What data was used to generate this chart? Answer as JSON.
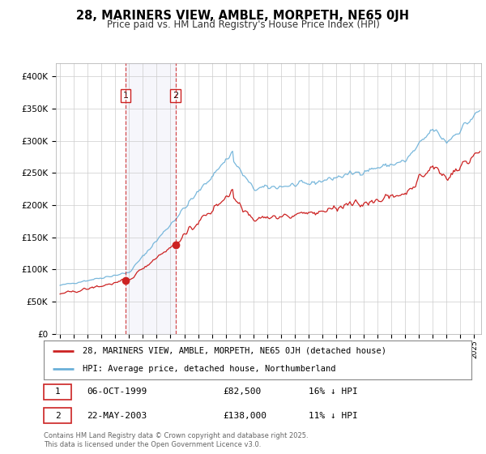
{
  "title": "28, MARINERS VIEW, AMBLE, MORPETH, NE65 0JH",
  "subtitle": "Price paid vs. HM Land Registry's House Price Index (HPI)",
  "hpi_color": "#6ab0d8",
  "property_color": "#cc2222",
  "sale1_date": "06-OCT-1999",
  "sale1_price": 82500,
  "sale1_year": 1999.75,
  "sale1_hpi_pct": "16% ↓ HPI",
  "sale2_date": "22-MAY-2003",
  "sale2_price": 138000,
  "sale2_year": 2003.37,
  "sale2_hpi_pct": "11% ↓ HPI",
  "legend1": "28, MARINERS VIEW, AMBLE, MORPETH, NE65 0JH (detached house)",
  "legend2": "HPI: Average price, detached house, Northumberland",
  "footer": "Contains HM Land Registry data © Crown copyright and database right 2025.\nThis data is licensed under the Open Government Licence v3.0.",
  "ylim": [
    0,
    420000
  ],
  "yticks": [
    0,
    50000,
    100000,
    150000,
    200000,
    250000,
    300000,
    350000,
    400000
  ],
  "xlim_left": 1994.7,
  "xlim_right": 2025.5,
  "background_color": "#ffffff",
  "grid_color": "#cccccc"
}
